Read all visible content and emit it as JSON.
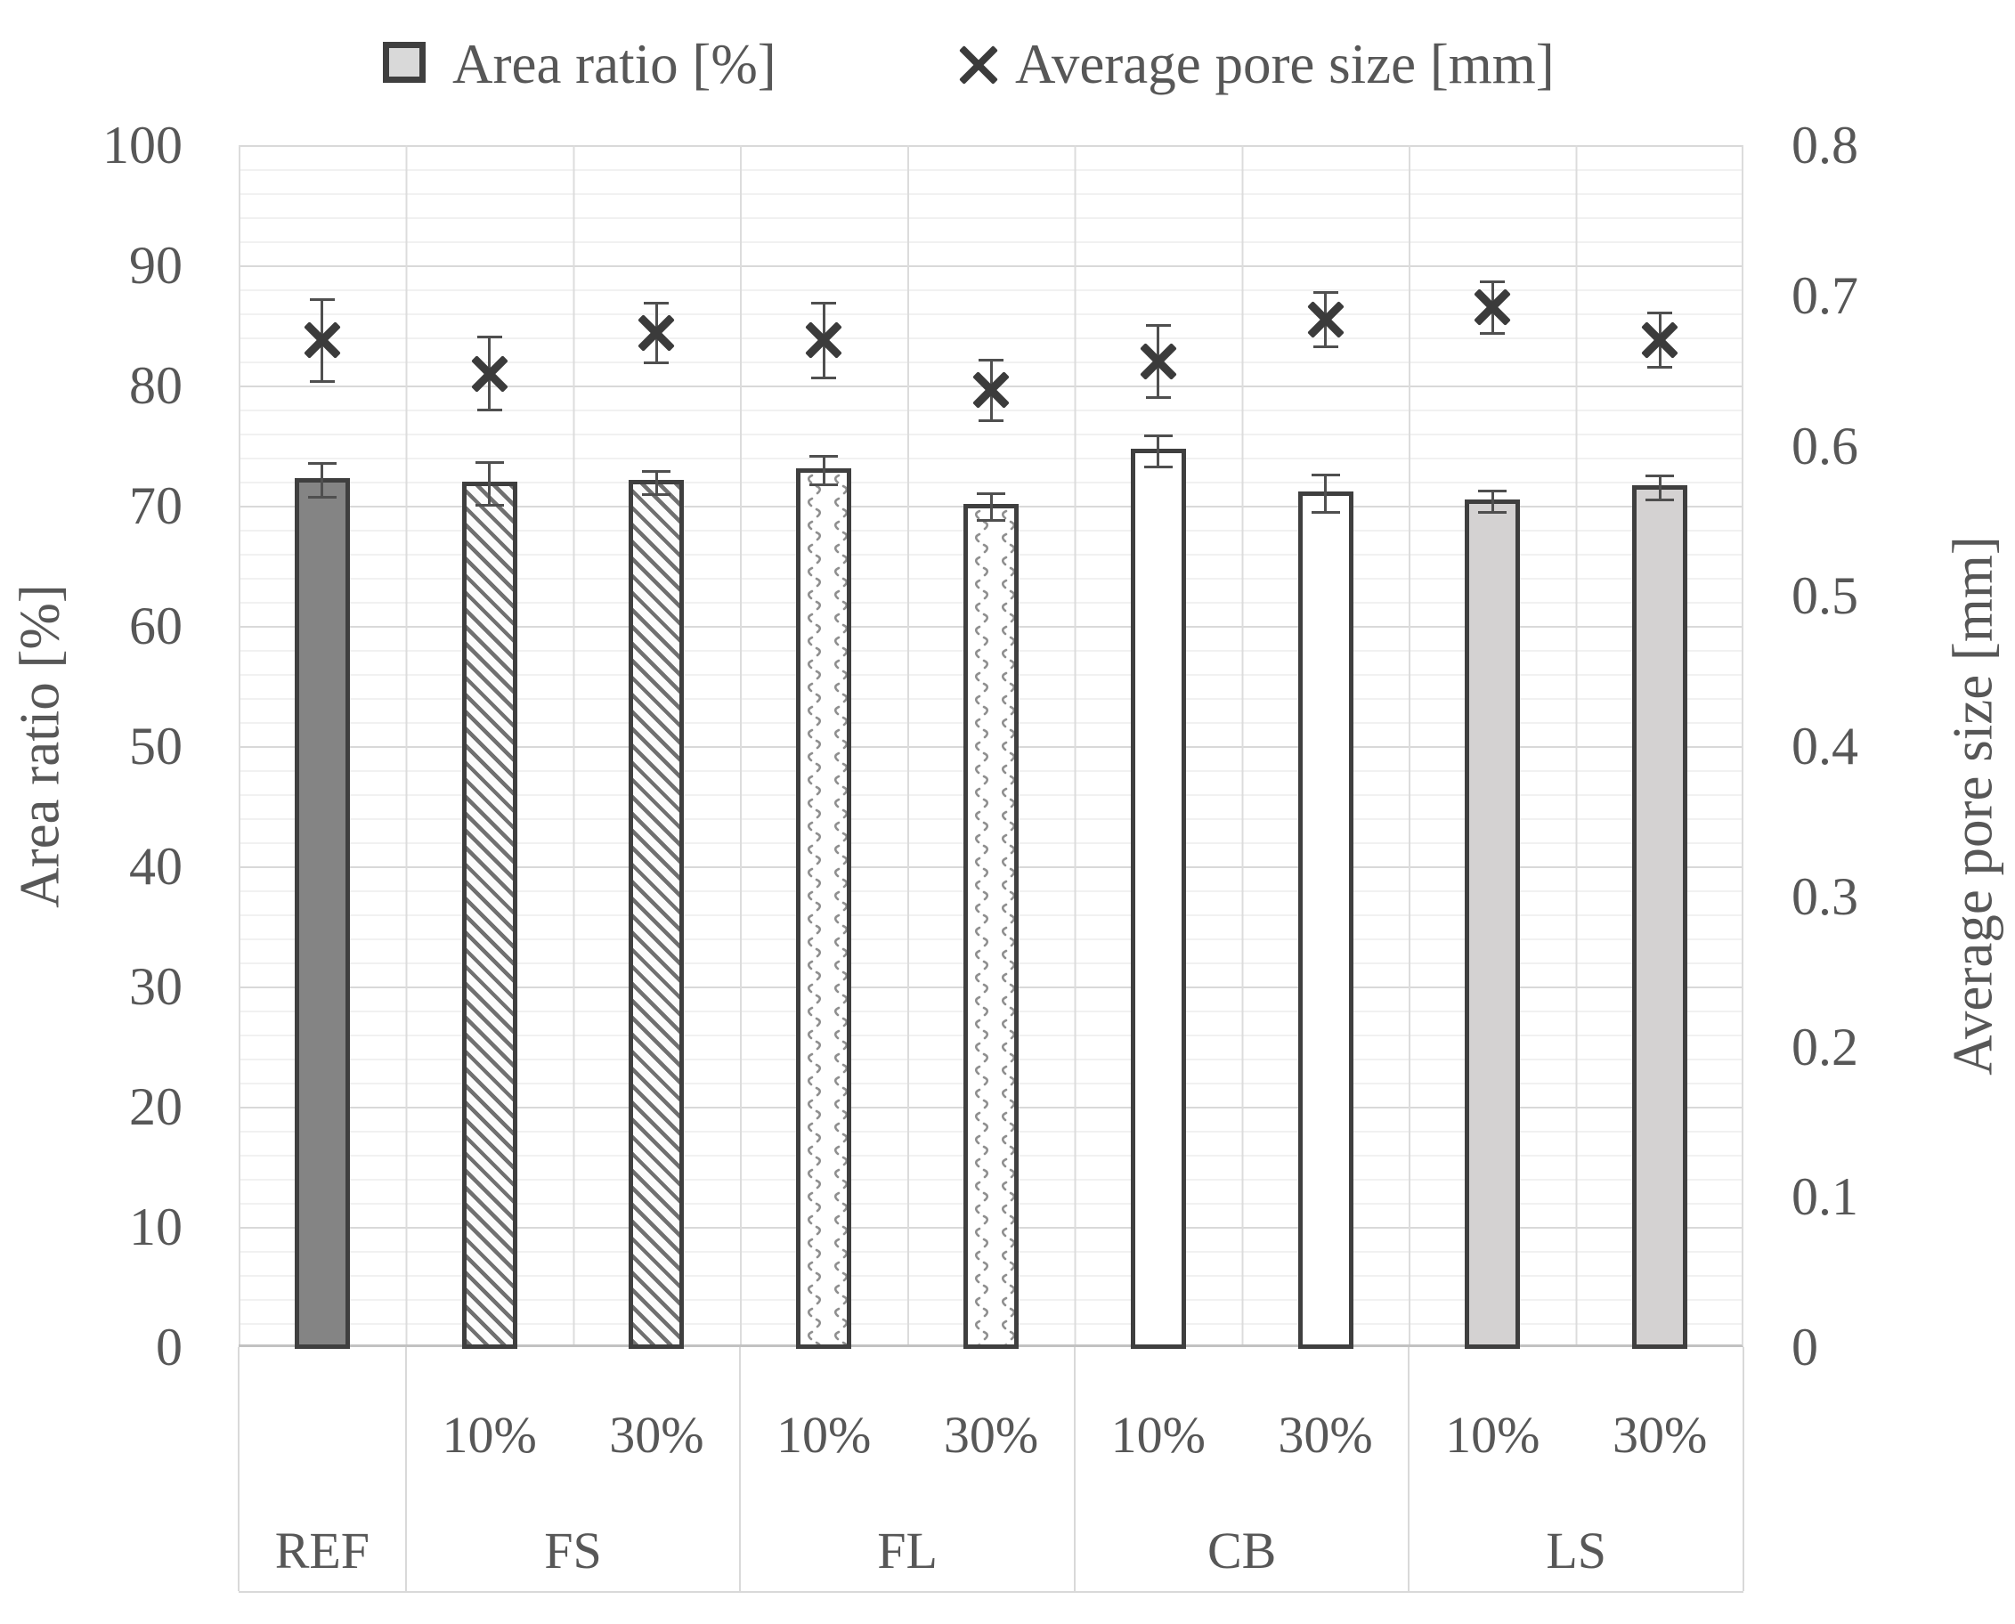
{
  "legend": {
    "items": [
      {
        "label": "Area ratio [%]",
        "marker": "gray-square"
      },
      {
        "label": "Average pore size [mm]",
        "marker": "x-cross"
      }
    ]
  },
  "colors": {
    "bar_border": "#3f3f3f",
    "ref_fill": "#848484",
    "ls_fill": "#d4d2d2",
    "cb_fill": "#ffffff",
    "hatch_stroke": "#707070",
    "confetti_stroke": "#8f8f8f",
    "marker": "#3b3b3b",
    "error_bar": "#4f4f4f",
    "grid_major": "#d9d9d9",
    "grid_minor": "#f1f1f1",
    "text": "#575757"
  },
  "chart_data": {
    "type": "bar",
    "title": "",
    "categories": [
      "REF",
      "FS 10%",
      "FS 30%",
      "FL 10%",
      "FL 30%",
      "CB 10%",
      "CB 30%",
      "LS 10%",
      "LS 30%"
    ],
    "slot_pct_labels": [
      "",
      "10%",
      "30%",
      "10%",
      "30%",
      "10%",
      "30%",
      "10%",
      "30%"
    ],
    "groups": [
      {
        "label": "REF",
        "slots": 1
      },
      {
        "label": "FS",
        "slots": 2
      },
      {
        "label": "FL",
        "slots": 2
      },
      {
        "label": "CB",
        "slots": 2
      },
      {
        "label": "LS",
        "slots": 2
      }
    ],
    "series": [
      {
        "name": "Area ratio [%]",
        "type": "bar",
        "axis": "left",
        "values": [
          72.1,
          71.8,
          71.9,
          72.9,
          69.9,
          74.5,
          71.0,
          70.3,
          71.5
        ],
        "errors": [
          1.5,
          1.9,
          1.1,
          1.3,
          1.2,
          1.4,
          1.7,
          1.0,
          1.1
        ],
        "fill_styles": [
          "solid-gray",
          "hatch",
          "hatch",
          "confetti",
          "confetti",
          "white",
          "white",
          "light-gray",
          "light-gray"
        ]
      },
      {
        "name": "Average pore size [mm]",
        "type": "scatter-x",
        "axis": "right",
        "values": [
          0.67,
          0.648,
          0.675,
          0.67,
          0.637,
          0.656,
          0.684,
          0.692,
          0.67
        ],
        "errors": [
          0.028,
          0.025,
          0.021,
          0.026,
          0.021,
          0.025,
          0.019,
          0.018,
          0.019
        ]
      }
    ],
    "left_axis": {
      "title": "Area ratio [%]",
      "min": 0,
      "max": 100,
      "ticks": [
        "100",
        "90",
        "80",
        "70",
        "60",
        "50",
        "40",
        "30",
        "20",
        "10",
        "0"
      ]
    },
    "right_axis": {
      "title": "Average pore size [mm]",
      "min": 0,
      "max": 0.8,
      "ticks": [
        "0.8",
        "0.7",
        "0.6",
        "0.5",
        "0.4",
        "0.3",
        "0.2",
        "0.1",
        "0"
      ]
    },
    "grid": {
      "minor_step": 2,
      "major_step": 10,
      "vertical_lines": "every-slot-boundary"
    },
    "legend_position": "top"
  }
}
